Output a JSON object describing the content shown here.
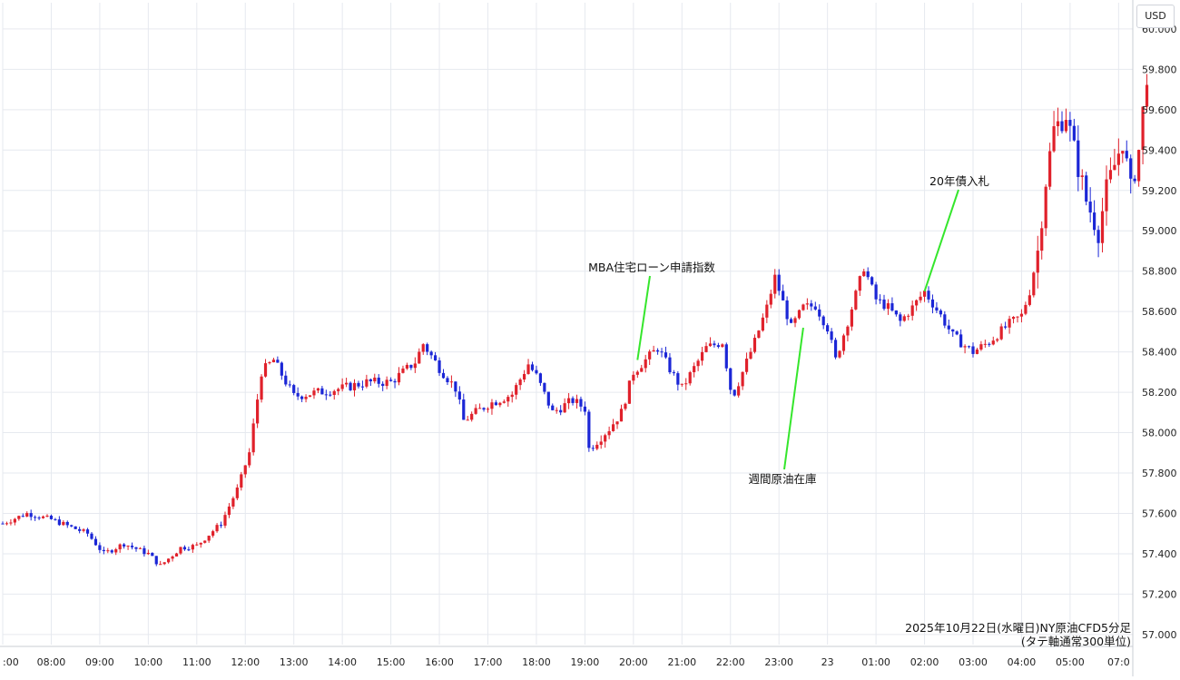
{
  "currency_label": "USD",
  "caption": {
    "line1": "2025年10月22日(水曜日)NY原油CFD5分足",
    "line2": "(タテ軸通常300単位)"
  },
  "colors": {
    "up": "#e0212b",
    "down": "#1b26d6",
    "annotation_line": "#35e62c",
    "grid": "#e6e9ef",
    "axis_text": "#222222"
  },
  "chart_data": {
    "type": "candlestick",
    "title": "",
    "xlabel": "",
    "ylabel": "",
    "ylim": [
      56.95,
      60.13
    ],
    "grid": true,
    "y_ticks": [
      "57.000",
      "57.200",
      "57.400",
      "57.600",
      "57.800",
      "58.000",
      "58.200",
      "58.400",
      "58.600",
      "58.800",
      "59.000",
      "59.200",
      "59.400",
      "59.600",
      "59.800",
      "60.000"
    ],
    "x_ticks": [
      ":00",
      "08:00",
      "09:00",
      "10:00",
      "11:00",
      "12:00",
      "13:00",
      "14:00",
      "15:00",
      "16:00",
      "17:00",
      "18:00",
      "19:00",
      "20:00",
      "21:00",
      "22:00",
      "23:00",
      "23",
      "01:00",
      "02:00",
      "03:00",
      "04:00",
      "05:00",
      "07:0"
    ],
    "bar_interval_minutes": 5,
    "approx_close_path": [
      {
        "time": "07:00",
        "price": 57.55
      },
      {
        "time": "07:30",
        "price": 57.6
      },
      {
        "time": "08:00",
        "price": 57.57
      },
      {
        "time": "08:45",
        "price": 57.5
      },
      {
        "time": "09:05",
        "price": 57.4
      },
      {
        "time": "09:30",
        "price": 57.45
      },
      {
        "time": "10:00",
        "price": 57.4
      },
      {
        "time": "10:15",
        "price": 57.34
      },
      {
        "time": "10:40",
        "price": 57.43
      },
      {
        "time": "11:00",
        "price": 57.44
      },
      {
        "time": "11:30",
        "price": 57.55
      },
      {
        "time": "11:50",
        "price": 57.72
      },
      {
        "time": "12:05",
        "price": 57.9
      },
      {
        "time": "12:20",
        "price": 58.3
      },
      {
        "time": "12:35",
        "price": 58.36
      },
      {
        "time": "13:00",
        "price": 58.18
      },
      {
        "time": "13:30",
        "price": 58.2
      },
      {
        "time": "14:00",
        "price": 58.22
      },
      {
        "time": "14:30",
        "price": 58.25
      },
      {
        "time": "15:00",
        "price": 58.25
      },
      {
        "time": "15:30",
        "price": 58.35
      },
      {
        "time": "15:40",
        "price": 58.44
      },
      {
        "time": "16:00",
        "price": 58.32
      },
      {
        "time": "16:20",
        "price": 58.22
      },
      {
        "time": "16:30",
        "price": 58.06
      },
      {
        "time": "17:00",
        "price": 58.14
      },
      {
        "time": "17:30",
        "price": 58.19
      },
      {
        "time": "17:50",
        "price": 58.34
      },
      {
        "time": "18:00",
        "price": 58.28
      },
      {
        "time": "18:20",
        "price": 58.1
      },
      {
        "time": "18:45",
        "price": 58.16
      },
      {
        "time": "19:00",
        "price": 58.12
      },
      {
        "time": "19:05",
        "price": 57.92
      },
      {
        "time": "19:30",
        "price": 58.02
      },
      {
        "time": "19:45",
        "price": 58.1
      },
      {
        "time": "20:00",
        "price": 58.3
      },
      {
        "time": "20:30",
        "price": 58.42
      },
      {
        "time": "20:50",
        "price": 58.28
      },
      {
        "time": "21:00",
        "price": 58.22
      },
      {
        "time": "21:30",
        "price": 58.42
      },
      {
        "time": "21:50",
        "price": 58.45
      },
      {
        "time": "22:00",
        "price": 58.22
      },
      {
        "time": "22:05",
        "price": 58.2
      },
      {
        "time": "22:30",
        "price": 58.45
      },
      {
        "time": "22:45",
        "price": 58.62
      },
      {
        "time": "22:55",
        "price": 58.77
      },
      {
        "time": "23:15",
        "price": 58.52
      },
      {
        "time": "23:30",
        "price": 58.62
      },
      {
        "time": "23:45",
        "price": 58.63
      },
      {
        "time": "00:00",
        "price": 58.52
      },
      {
        "time": "00:10",
        "price": 58.36
      },
      {
        "time": "00:25",
        "price": 58.55
      },
      {
        "time": "00:45",
        "price": 58.82
      },
      {
        "time": "01:00",
        "price": 58.66
      },
      {
        "time": "01:15",
        "price": 58.62
      },
      {
        "time": "01:30",
        "price": 58.55
      },
      {
        "time": "01:45",
        "price": 58.62
      },
      {
        "time": "02:00",
        "price": 58.7
      },
      {
        "time": "02:20",
        "price": 58.58
      },
      {
        "time": "02:35",
        "price": 58.48
      },
      {
        "time": "02:50",
        "price": 58.43
      },
      {
        "time": "03:00",
        "price": 58.4
      },
      {
        "time": "03:20",
        "price": 58.45
      },
      {
        "time": "03:45",
        "price": 58.54
      },
      {
        "time": "04:00",
        "price": 58.58
      },
      {
        "time": "04:10",
        "price": 58.7
      },
      {
        "time": "04:20",
        "price": 58.9
      },
      {
        "time": "04:30",
        "price": 59.25
      },
      {
        "time": "04:40",
        "price": 59.5
      },
      {
        "time": "04:55",
        "price": 59.58
      },
      {
        "time": "05:05",
        "price": 59.4
      },
      {
        "time": "05:20",
        "price": 59.15
      },
      {
        "time": "05:35",
        "price": 59.0
      },
      {
        "time": "05:45",
        "price": 59.2
      },
      {
        "time": "06:05",
        "price": 59.45
      },
      {
        "time": "06:15",
        "price": 59.2
      },
      {
        "time": "06:25",
        "price": 59.4
      },
      {
        "time": "06:35",
        "price": 59.78
      }
    ],
    "annotations": [
      {
        "label": "MBA住宅ローン申請指数",
        "time": "20:05",
        "price": 58.36
      },
      {
        "label": "週間原油在庫",
        "time": "23:30",
        "price": 58.52
      },
      {
        "label": "20年債入札",
        "time": "02:00",
        "price": 58.7
      }
    ]
  }
}
